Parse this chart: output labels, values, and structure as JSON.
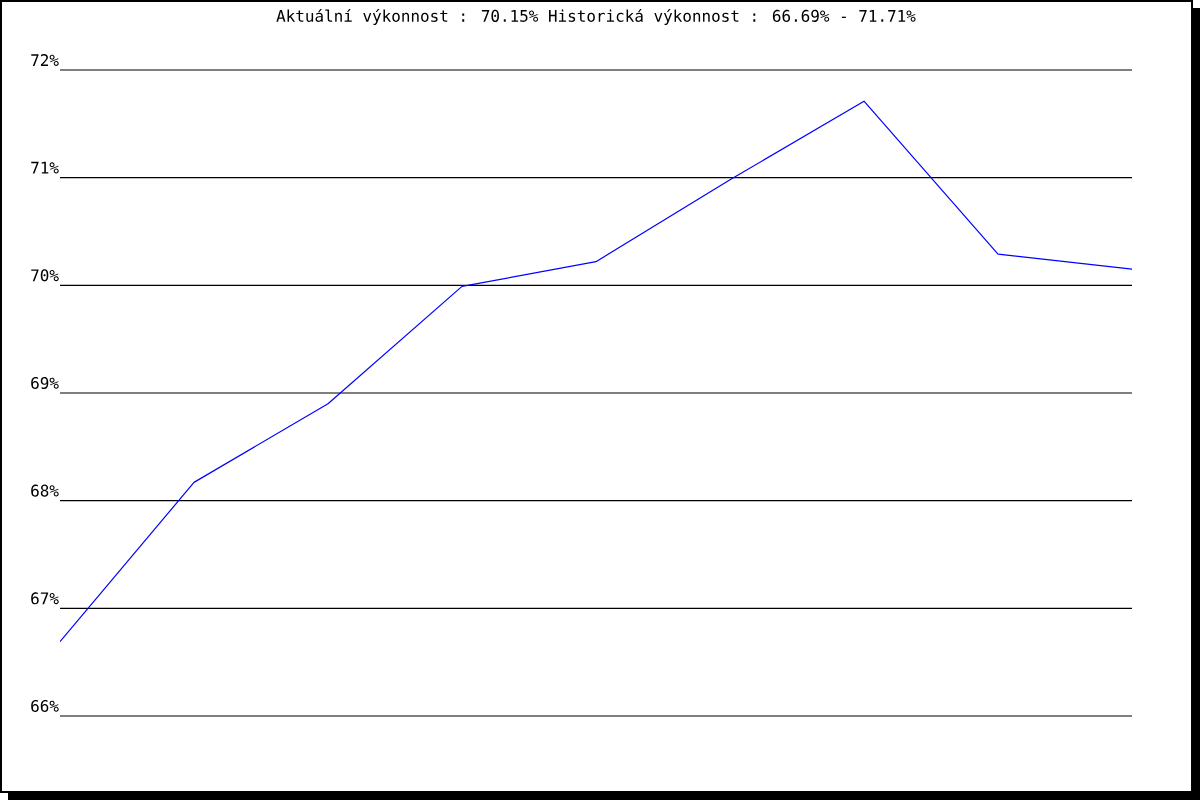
{
  "chart_data": {
    "type": "line",
    "title": "Aktuální výkonnost : 70.15%  Historická výkonnost : 66.69% - 71.71%",
    "categories": [
      null,
      null,
      null,
      null,
      null,
      null,
      null,
      null,
      null
    ],
    "series": [
      {
        "color": "#0000ff",
        "values": [
          66.69,
          68.17,
          68.9,
          69.99,
          70.22,
          70.98,
          71.71,
          70.29,
          70.15
        ]
      }
    ],
    "ylim": [
      66,
      72
    ],
    "yticks": [
      {
        "value": 66,
        "label": "66%"
      },
      {
        "value": 67,
        "label": "67%"
      },
      {
        "value": 68,
        "label": "68%"
      },
      {
        "value": 69,
        "label": "69%"
      },
      {
        "value": 70,
        "label": "70%"
      },
      {
        "value": 71,
        "label": "71%"
      },
      {
        "value": 72,
        "label": "72%"
      }
    ],
    "grid": "y",
    "marker": "none",
    "line_style": "solid"
  }
}
